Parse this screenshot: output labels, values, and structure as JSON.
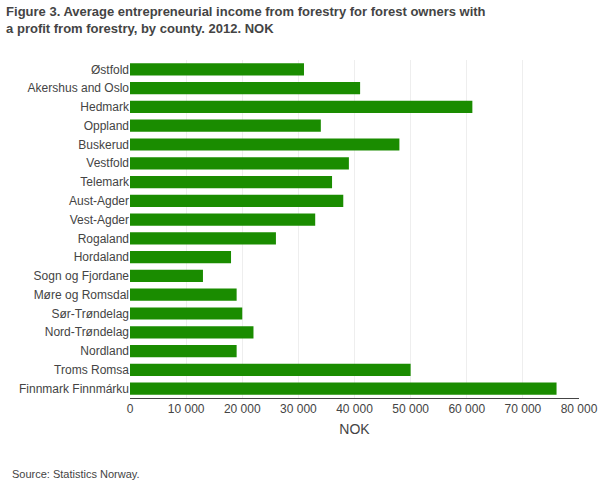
{
  "chart_data": {
    "type": "bar",
    "orientation": "horizontal",
    "title": "Figure 3. Average entrepreneurial income from forestry for forest owners with",
    "subtitle": "a profit from forestry, by county. 2012. NOK",
    "categories": [
      "Østfold",
      "Akershus and Oslo",
      "Hedmark",
      "Oppland",
      "Buskerud",
      "Vestfold",
      "Telemark",
      "Aust-Agder",
      "Vest-Agder",
      "Rogaland",
      "Hordaland",
      "Sogn og Fjordane",
      "Møre og Romsdal",
      "Sør-Trøndelag",
      "Nord-Trøndelag",
      "Nordland",
      "Troms Romsa",
      "Finnmark Finnmárku"
    ],
    "values": [
      31000,
      41000,
      61000,
      34000,
      48000,
      39000,
      36000,
      38000,
      33000,
      26000,
      18000,
      13000,
      19000,
      20000,
      22000,
      19000,
      50000,
      76000
    ],
    "color": "#1a8c00",
    "xlabel": "NOK",
    "xlim": [
      0,
      80000
    ],
    "xticks": [
      0,
      {
        "value": 10000,
        "label": "10 000"
      },
      {
        "value": 20000,
        "label": "20 000"
      },
      {
        "value": 30000,
        "label": "30 000"
      },
      {
        "value": 40000,
        "label": "40 000"
      },
      {
        "value": 50000,
        "label": "50 000"
      },
      {
        "value": 60000,
        "label": "60 000"
      },
      {
        "value": 70000,
        "label": "70 000"
      },
      {
        "value": 80000,
        "label": "80 000"
      }
    ],
    "grid": true,
    "annotations": [
      "Source: Statistics Norway."
    ]
  }
}
